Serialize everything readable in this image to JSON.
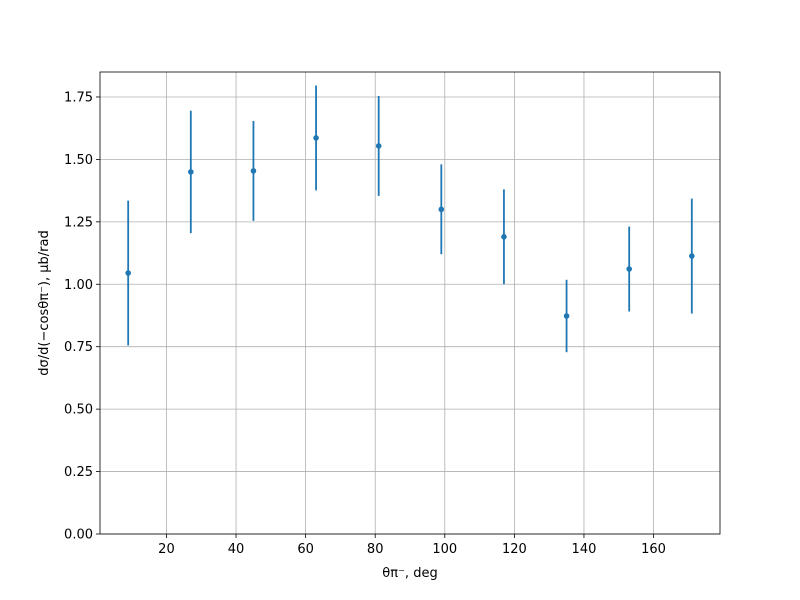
{
  "chart_data": {
    "type": "errorbar",
    "xlabel": "θπ⁻, deg",
    "ylabel": "dσ/d(−cosθπ⁻), μb/rad",
    "x": [
      9,
      27,
      45,
      63,
      81,
      99,
      117,
      135,
      153,
      171
    ],
    "series": [
      {
        "color": "#1f77b4",
        "values": [
          1.045,
          1.45,
          1.454,
          1.586,
          1.554,
          1.3,
          1.19,
          0.873,
          1.061,
          1.113
        ],
        "yerr": [
          0.29,
          0.245,
          0.2,
          0.21,
          0.2,
          0.18,
          0.19,
          0.145,
          0.17,
          0.23
        ]
      }
    ],
    "xlim": [
      0.9,
      179.1
    ],
    "ylim": [
      0,
      1.85
    ],
    "xticks": [
      20,
      40,
      60,
      80,
      100,
      120,
      140,
      160
    ],
    "yticks": [
      {
        "value": 0,
        "label": "0.00"
      },
      {
        "value": 0.25,
        "label": "0.25"
      },
      {
        "value": 0.5,
        "label": "0.50"
      },
      {
        "value": 0.75,
        "label": "0.75"
      },
      {
        "value": 1,
        "label": "1.00"
      },
      {
        "value": 1.25,
        "label": "1.25"
      },
      {
        "value": 1.5,
        "label": "1.50"
      },
      {
        "value": 1.75,
        "label": "1.75"
      }
    ],
    "grid": true
  }
}
